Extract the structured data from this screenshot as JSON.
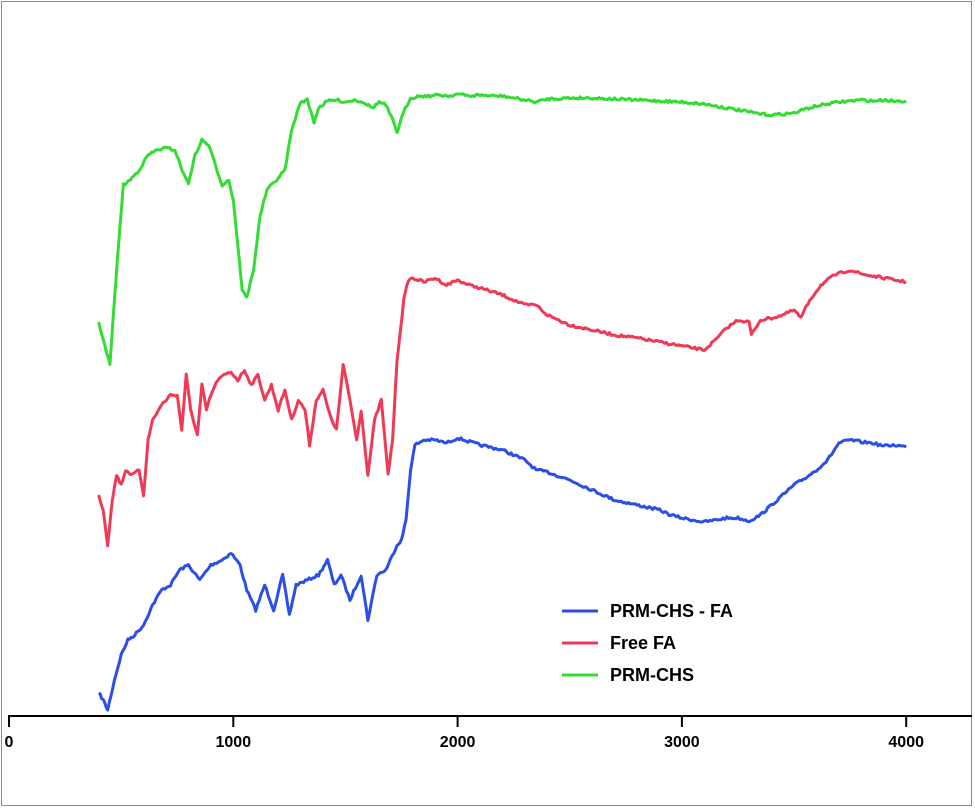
{
  "chart_data": {
    "type": "line",
    "title": "",
    "xlabel": "",
    "ylabel": "",
    "xlim": [
      0,
      4300
    ],
    "xticks": [
      "0",
      "1000",
      "2000",
      "3000",
      "4000"
    ],
    "grid": false,
    "legend_position": "bottom-right",
    "series": [
      {
        "name": "PRM-CHS - FA",
        "color": "#2b4ee6",
        "points": [
          [
            400,
            693
          ],
          [
            420,
            700
          ],
          [
            440,
            710
          ],
          [
            470,
            680
          ],
          [
            500,
            655
          ],
          [
            530,
            640
          ],
          [
            560,
            635
          ],
          [
            600,
            625
          ],
          [
            640,
            605
          ],
          [
            680,
            590
          ],
          [
            720,
            585
          ],
          [
            760,
            570
          ],
          [
            800,
            565
          ],
          [
            850,
            580
          ],
          [
            900,
            565
          ],
          [
            950,
            560
          ],
          [
            990,
            553
          ],
          [
            1030,
            565
          ],
          [
            1060,
            590
          ],
          [
            1100,
            610
          ],
          [
            1140,
            585
          ],
          [
            1180,
            610
          ],
          [
            1220,
            575
          ],
          [
            1250,
            615
          ],
          [
            1280,
            585
          ],
          [
            1330,
            580
          ],
          [
            1380,
            575
          ],
          [
            1420,
            560
          ],
          [
            1450,
            585
          ],
          [
            1480,
            575
          ],
          [
            1520,
            600
          ],
          [
            1570,
            575
          ],
          [
            1600,
            620
          ],
          [
            1640,
            575
          ],
          [
            1680,
            570
          ],
          [
            1700,
            560
          ],
          [
            1730,
            545
          ],
          [
            1750,
            540
          ],
          [
            1770,
            520
          ],
          [
            1790,
            470
          ],
          [
            1810,
            445
          ],
          [
            1850,
            440
          ],
          [
            1900,
            440
          ],
          [
            1950,
            443
          ],
          [
            2000,
            438
          ],
          [
            2100,
            445
          ],
          [
            2200,
            450
          ],
          [
            2300,
            460
          ],
          [
            2350,
            470
          ],
          [
            2400,
            472
          ],
          [
            2500,
            480
          ],
          [
            2600,
            490
          ],
          [
            2700,
            500
          ],
          [
            2800,
            505
          ],
          [
            2900,
            510
          ],
          [
            2950,
            515
          ],
          [
            3000,
            518
          ],
          [
            3050,
            520
          ],
          [
            3100,
            522
          ],
          [
            3150,
            520
          ],
          [
            3200,
            518
          ],
          [
            3250,
            518
          ],
          [
            3300,
            521
          ],
          [
            3350,
            515
          ],
          [
            3400,
            505
          ],
          [
            3450,
            495
          ],
          [
            3500,
            485
          ],
          [
            3550,
            478
          ],
          [
            3600,
            470
          ],
          [
            3650,
            460
          ],
          [
            3700,
            443
          ],
          [
            3750,
            440
          ],
          [
            3800,
            442
          ],
          [
            3850,
            443
          ],
          [
            3900,
            446
          ],
          [
            3950,
            445
          ],
          [
            4000,
            447
          ]
        ]
      },
      {
        "name": "Free FA",
        "color": "#ef3a56",
        "points": [
          [
            400,
            495
          ],
          [
            420,
            510
          ],
          [
            440,
            545
          ],
          [
            460,
            500
          ],
          [
            480,
            475
          ],
          [
            500,
            485
          ],
          [
            520,
            470
          ],
          [
            550,
            475
          ],
          [
            580,
            470
          ],
          [
            600,
            495
          ],
          [
            620,
            440
          ],
          [
            640,
            420
          ],
          [
            680,
            405
          ],
          [
            720,
            395
          ],
          [
            750,
            395
          ],
          [
            770,
            430
          ],
          [
            790,
            375
          ],
          [
            810,
            410
          ],
          [
            840,
            435
          ],
          [
            860,
            385
          ],
          [
            880,
            410
          ],
          [
            900,
            395
          ],
          [
            930,
            380
          ],
          [
            960,
            375
          ],
          [
            990,
            372
          ],
          [
            1020,
            380
          ],
          [
            1050,
            370
          ],
          [
            1080,
            385
          ],
          [
            1110,
            375
          ],
          [
            1140,
            400
          ],
          [
            1170,
            385
          ],
          [
            1200,
            410
          ],
          [
            1230,
            390
          ],
          [
            1260,
            420
          ],
          [
            1290,
            400
          ],
          [
            1320,
            410
          ],
          [
            1340,
            445
          ],
          [
            1370,
            400
          ],
          [
            1400,
            390
          ],
          [
            1430,
            415
          ],
          [
            1460,
            430
          ],
          [
            1490,
            365
          ],
          [
            1520,
            400
          ],
          [
            1550,
            440
          ],
          [
            1570,
            410
          ],
          [
            1600,
            475
          ],
          [
            1630,
            420
          ],
          [
            1660,
            400
          ],
          [
            1690,
            475
          ],
          [
            1710,
            440
          ],
          [
            1730,
            360
          ],
          [
            1760,
            300
          ],
          [
            1780,
            280
          ],
          [
            1800,
            278
          ],
          [
            1850,
            282
          ],
          [
            1900,
            278
          ],
          [
            1950,
            285
          ],
          [
            2000,
            280
          ],
          [
            2050,
            285
          ],
          [
            2100,
            288
          ],
          [
            2200,
            295
          ],
          [
            2300,
            305
          ],
          [
            2350,
            305
          ],
          [
            2400,
            315
          ],
          [
            2500,
            325
          ],
          [
            2600,
            330
          ],
          [
            2700,
            335
          ],
          [
            2800,
            338
          ],
          [
            2900,
            342
          ],
          [
            3000,
            346
          ],
          [
            3050,
            348
          ],
          [
            3100,
            350
          ],
          [
            3150,
            340
          ],
          [
            3200,
            328
          ],
          [
            3250,
            320
          ],
          [
            3300,
            322
          ],
          [
            3310,
            335
          ],
          [
            3350,
            320
          ],
          [
            3400,
            318
          ],
          [
            3450,
            315
          ],
          [
            3500,
            310
          ],
          [
            3530,
            318
          ],
          [
            3570,
            300
          ],
          [
            3620,
            285
          ],
          [
            3680,
            275
          ],
          [
            3750,
            270
          ],
          [
            3800,
            274
          ],
          [
            3850,
            276
          ],
          [
            3900,
            278
          ],
          [
            3950,
            280
          ],
          [
            4000,
            282
          ]
        ]
      },
      {
        "name": "PRM-CHS",
        "color": "#33dc33",
        "points": [
          [
            400,
            322
          ],
          [
            420,
            340
          ],
          [
            450,
            365
          ],
          [
            470,
            300
          ],
          [
            490,
            240
          ],
          [
            510,
            185
          ],
          [
            540,
            180
          ],
          [
            580,
            170
          ],
          [
            620,
            155
          ],
          [
            660,
            150
          ],
          [
            700,
            148
          ],
          [
            740,
            150
          ],
          [
            780,
            175
          ],
          [
            800,
            183
          ],
          [
            830,
            155
          ],
          [
            860,
            140
          ],
          [
            890,
            145
          ],
          [
            920,
            165
          ],
          [
            950,
            185
          ],
          [
            980,
            180
          ],
          [
            1000,
            200
          ],
          [
            1020,
            245
          ],
          [
            1040,
            290
          ],
          [
            1060,
            298
          ],
          [
            1090,
            270
          ],
          [
            1120,
            215
          ],
          [
            1150,
            190
          ],
          [
            1200,
            178
          ],
          [
            1230,
            170
          ],
          [
            1260,
            130
          ],
          [
            1300,
            102
          ],
          [
            1330,
            100
          ],
          [
            1360,
            122
          ],
          [
            1380,
            108
          ],
          [
            1420,
            101
          ],
          [
            1460,
            100
          ],
          [
            1500,
            102
          ],
          [
            1540,
            100
          ],
          [
            1580,
            102
          ],
          [
            1620,
            108
          ],
          [
            1650,
            102
          ],
          [
            1680,
            105
          ],
          [
            1710,
            120
          ],
          [
            1730,
            132
          ],
          [
            1760,
            112
          ],
          [
            1790,
            98
          ],
          [
            1830,
            96
          ],
          [
            1870,
            96
          ],
          [
            1920,
            95
          ],
          [
            1960,
            96
          ],
          [
            2000,
            94
          ],
          [
            2050,
            96
          ],
          [
            2100,
            95
          ],
          [
            2150,
            96
          ],
          [
            2200,
            96
          ],
          [
            2250,
            98
          ],
          [
            2300,
            100
          ],
          [
            2350,
            102
          ],
          [
            2400,
            99
          ],
          [
            2500,
            98
          ],
          [
            2600,
            98
          ],
          [
            2700,
            99
          ],
          [
            2800,
            100
          ],
          [
            2900,
            101
          ],
          [
            3000,
            102
          ],
          [
            3100,
            104
          ],
          [
            3200,
            108
          ],
          [
            3300,
            112
          ],
          [
            3350,
            114
          ],
          [
            3400,
            115
          ],
          [
            3450,
            114
          ],
          [
            3500,
            113
          ],
          [
            3550,
            109
          ],
          [
            3600,
            106
          ],
          [
            3650,
            104
          ],
          [
            3700,
            102
          ],
          [
            3750,
            101
          ],
          [
            3800,
            100
          ],
          [
            3850,
            101
          ],
          [
            3900,
            100
          ],
          [
            3950,
            101
          ],
          [
            4000,
            101
          ]
        ]
      }
    ]
  }
}
